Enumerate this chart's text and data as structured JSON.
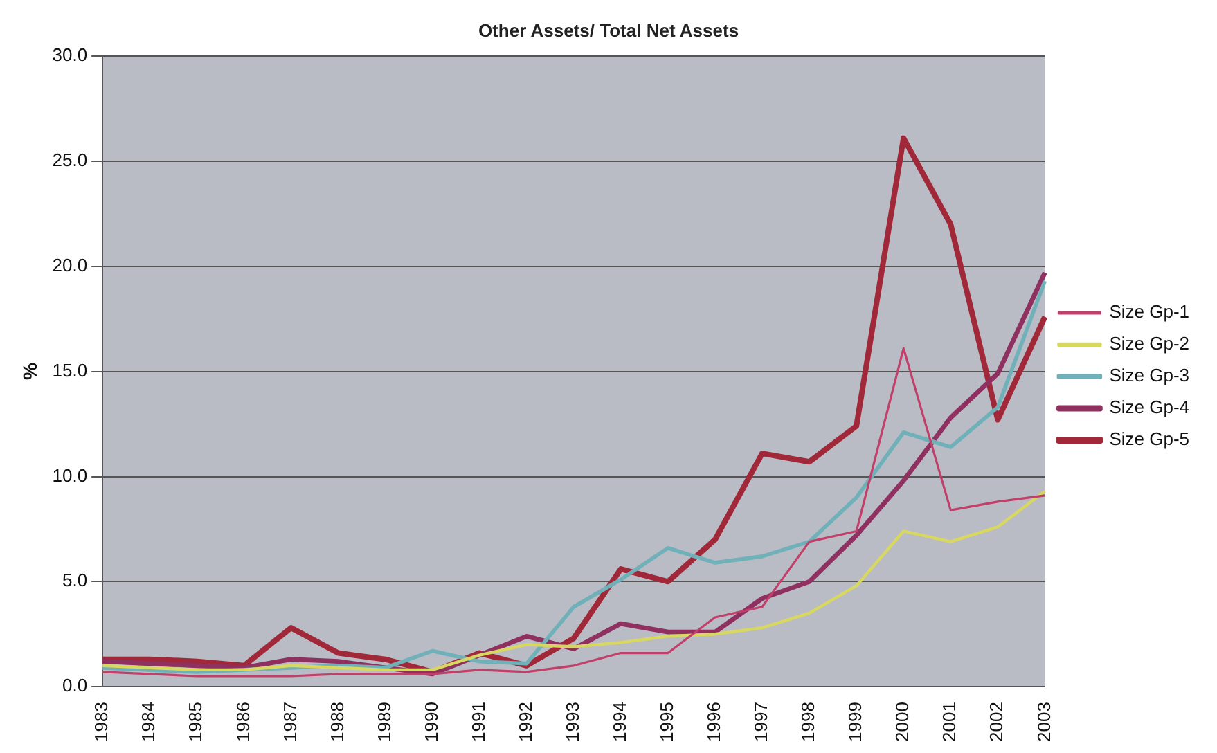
{
  "chart_data": {
    "type": "line",
    "title": "Other Assets/ Total Net Assets",
    "ylabel": "%",
    "categories": [
      "1983",
      "1984",
      "1985",
      "1986",
      "1987",
      "1988",
      "1989",
      "1990",
      "1991",
      "1992",
      "1993",
      "1994",
      "1995",
      "1996",
      "1997",
      "1998",
      "1999",
      "2000",
      "2001",
      "2002",
      "2003"
    ],
    "series": [
      {
        "name": "Size Gp-1",
        "color": "#c0406a",
        "values": [
          0.7,
          0.6,
          0.5,
          0.5,
          0.5,
          0.6,
          0.6,
          0.6,
          0.8,
          0.7,
          1.0,
          1.6,
          1.6,
          3.3,
          3.8,
          6.9,
          7.4,
          16.1,
          8.4,
          8.8,
          9.1
        ]
      },
      {
        "name": "Size Gp-2",
        "color": "#d8d860",
        "values": [
          1.0,
          0.9,
          0.8,
          0.8,
          1.0,
          0.9,
          0.8,
          0.8,
          1.5,
          2.0,
          1.9,
          2.1,
          2.4,
          2.5,
          2.8,
          3.5,
          4.8,
          7.4,
          6.9,
          7.6,
          9.3
        ]
      },
      {
        "name": "Size Gp-3",
        "color": "#70b0b8",
        "values": [
          0.9,
          0.8,
          0.7,
          0.8,
          0.9,
          1.0,
          0.9,
          1.7,
          1.2,
          1.1,
          3.8,
          5.1,
          6.6,
          5.9,
          6.2,
          6.9,
          9.0,
          12.1,
          11.4,
          13.3,
          19.3
        ]
      },
      {
        "name": "Size Gp-4",
        "color": "#903060",
        "values": [
          1.2,
          1.1,
          1.0,
          0.9,
          1.3,
          1.2,
          0.9,
          0.6,
          1.5,
          2.4,
          1.8,
          3.0,
          2.6,
          2.6,
          4.2,
          5.0,
          7.2,
          9.8,
          12.8,
          14.9,
          19.7
        ]
      },
      {
        "name": "Size Gp-5",
        "color": "#a02838",
        "values": [
          1.3,
          1.3,
          1.2,
          1.0,
          2.8,
          1.6,
          1.3,
          0.7,
          1.6,
          1.0,
          2.3,
          5.6,
          5.0,
          7.0,
          11.1,
          10.7,
          12.4,
          26.1,
          22.0,
          12.7,
          17.6
        ]
      }
    ],
    "ylim": [
      0,
      30
    ],
    "yticks": [
      {
        "value": 0,
        "label": "0.0"
      },
      {
        "value": 5,
        "label": "5.0"
      },
      {
        "value": 10,
        "label": "10.0"
      },
      {
        "value": 15,
        "label": "15.0"
      },
      {
        "value": 20,
        "label": "20.0"
      },
      {
        "value": 25,
        "label": "25.0"
      },
      {
        "value": 30,
        "label": "30.0"
      }
    ],
    "grid": "y",
    "legend": "right",
    "marker": "none",
    "line_style": "solid"
  }
}
